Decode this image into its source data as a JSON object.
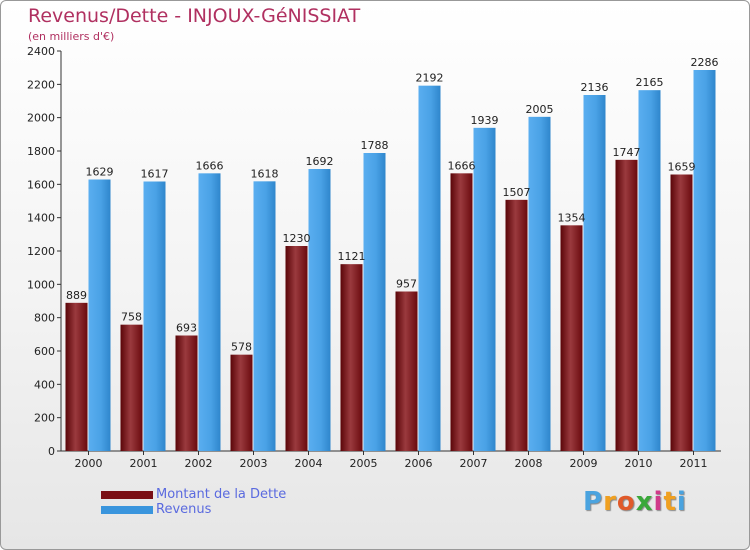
{
  "title": "Revenus/Dette - INJOUX-GéNISSIAT",
  "subtitle": "(en milliers d'€)",
  "logo": "Proxiti",
  "colors": {
    "debt": "#7a0f14",
    "revenue": "#3a95dd",
    "title": "#b03060",
    "legend_text": "#5a6adf"
  },
  "chart_data": {
    "type": "bar",
    "categories": [
      "2000",
      "2001",
      "2002",
      "2003",
      "2004",
      "2005",
      "2006",
      "2007",
      "2008",
      "2009",
      "2010",
      "2011"
    ],
    "series": [
      {
        "name": "Montant de la Dette",
        "values": [
          889,
          758,
          693,
          578,
          1230,
          1121,
          957,
          1666,
          1507,
          1354,
          1747,
          1659
        ]
      },
      {
        "name": "Revenus",
        "values": [
          1629,
          1617,
          1666,
          1618,
          1692,
          1788,
          2192,
          1939,
          2005,
          2136,
          2165,
          2286
        ]
      }
    ],
    "ylim": [
      0,
      2400
    ],
    "yticks": [
      0,
      200,
      400,
      600,
      800,
      1000,
      1200,
      1400,
      1600,
      1800,
      2000,
      2200,
      2400
    ],
    "grid": false,
    "legend": "bottom-left"
  }
}
